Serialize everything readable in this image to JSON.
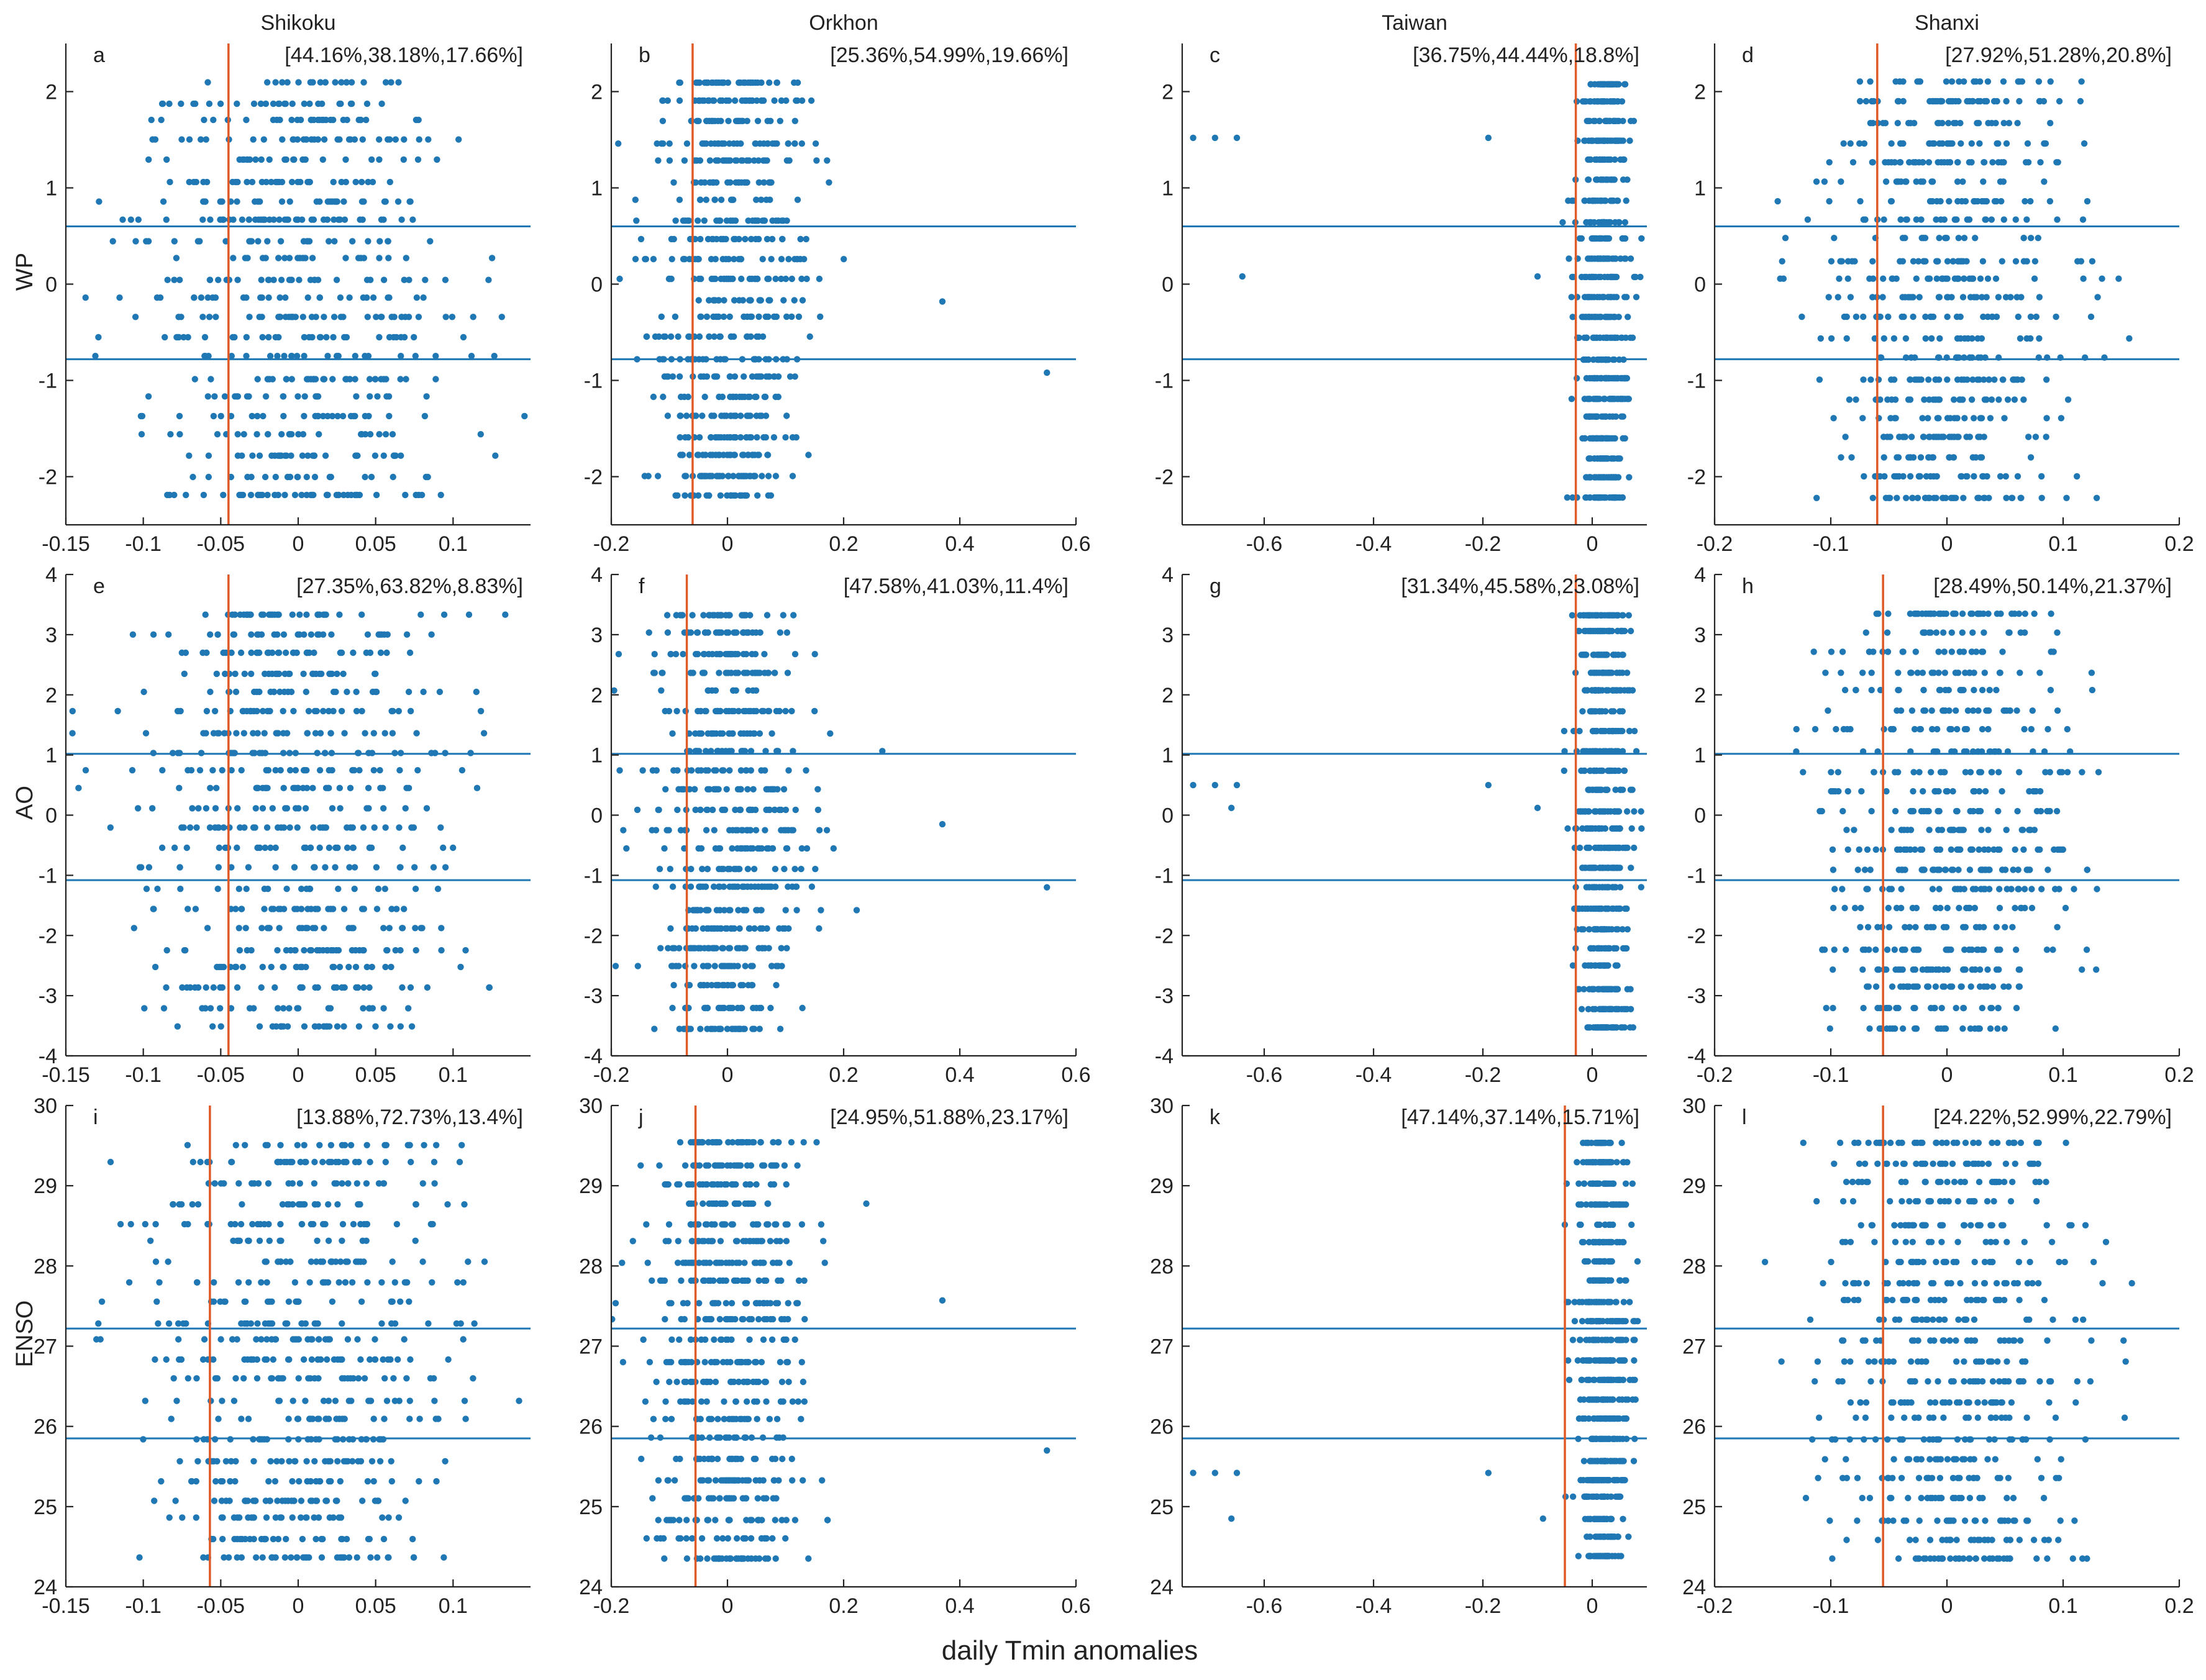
{
  "chart_data": {
    "type": "scatter",
    "xlabel": "daily Tmin anomalies",
    "colors": {
      "points": "#1f77b4",
      "threshold_lines": "#1f77b4",
      "vertical_line": "#e05a28"
    },
    "columns": [
      {
        "title": "Shikoku",
        "xlim": [
          -0.15,
          0.15
        ],
        "xticks": [
          "-0.15",
          "-0.1",
          "-0.05",
          "0",
          "0.05",
          "0.1"
        ]
      },
      {
        "title": "Orkhon",
        "xlim": [
          -0.2,
          0.6
        ],
        "xticks": [
          "-0.2",
          "0",
          "0.2",
          "0.4",
          "0.6"
        ]
      },
      {
        "title": "Taiwan",
        "xlim": [
          -0.75,
          0.1
        ],
        "xticks": [
          "-0.6",
          "-0.4",
          "-0.2",
          "0"
        ]
      },
      {
        "title": "Shanxi",
        "xlim": [
          -0.2,
          0.2
        ],
        "xticks": [
          "-0.2",
          "-0.1",
          "0",
          "0.1",
          "0.2"
        ]
      }
    ],
    "rows": [
      {
        "ylabel": "WP",
        "ylim": [
          -2.5,
          2.5
        ],
        "yticks": [
          "-2",
          "-1",
          "0",
          "1",
          "2"
        ],
        "hlines": [
          0.6,
          -0.78
        ]
      },
      {
        "ylabel": "AO",
        "ylim": [
          -4,
          4
        ],
        "yticks": [
          "-4",
          "-3",
          "-2",
          "-1",
          "0",
          "1",
          "2",
          "3",
          "4"
        ],
        "hlines": [
          1.02,
          -1.08
        ]
      },
      {
        "ylabel": "ENSO",
        "ylim": [
          24,
          30
        ],
        "yticks": [
          "24",
          "25",
          "26",
          "27",
          "28",
          "29",
          "30"
        ],
        "hlines": [
          27.22,
          25.85
        ]
      }
    ],
    "panels": [
      {
        "letter": "a",
        "row": 0,
        "col": 0,
        "label": "[44.16%,38.18%,17.66%]",
        "vline": -0.045
      },
      {
        "letter": "b",
        "row": 0,
        "col": 1,
        "label": "[25.36%,54.99%,19.66%]",
        "vline": -0.06
      },
      {
        "letter": "c",
        "row": 0,
        "col": 2,
        "label": "[36.75%,44.44%,18.8%]",
        "vline": -0.03
      },
      {
        "letter": "d",
        "row": 0,
        "col": 3,
        "label": "[27.92%,51.28%,20.8%]",
        "vline": -0.06
      },
      {
        "letter": "e",
        "row": 1,
        "col": 0,
        "label": "[27.35%,63.82%,8.83%]",
        "vline": -0.045
      },
      {
        "letter": "f",
        "row": 1,
        "col": 1,
        "label": "[47.58%,41.03%,11.4%]",
        "vline": -0.07
      },
      {
        "letter": "g",
        "row": 1,
        "col": 2,
        "label": "[31.34%,45.58%,23.08%]",
        "vline": -0.03
      },
      {
        "letter": "h",
        "row": 1,
        "col": 3,
        "label": "[28.49%,50.14%,21.37%]",
        "vline": -0.055
      },
      {
        "letter": "i",
        "row": 2,
        "col": 0,
        "label": "[13.88%,72.73%,13.4%]",
        "vline": -0.057
      },
      {
        "letter": "j",
        "row": 2,
        "col": 1,
        "label": "[24.95%,51.88%,23.17%]",
        "vline": -0.055
      },
      {
        "letter": "k",
        "row": 2,
        "col": 2,
        "label": "[47.14%,37.14%,15.71%]",
        "vline": -0.05
      },
      {
        "letter": "l",
        "row": 2,
        "col": 3,
        "label": "[24.22%,52.99%,22.79%]",
        "vline": -0.055
      }
    ],
    "point_clouds": {
      "description_of_distribution": "dense clusters of daily points arranged in horizontal bands (one band per index value)",
      "centers_by_column": [
        0.0,
        0.0,
        0.02,
        0.0
      ],
      "spread_by_column": [
        0.05,
        0.07,
        0.025,
        0.055
      ],
      "outliers": [
        {
          "panel": "b",
          "x": 0.37,
          "y": -0.18
        },
        {
          "panel": "b",
          "x": 0.55,
          "y": -0.92
        },
        {
          "panel": "c",
          "x": -0.73,
          "y": 1.52
        },
        {
          "panel": "c",
          "x": -0.69,
          "y": 1.52
        },
        {
          "panel": "c",
          "x": -0.65,
          "y": 1.52
        },
        {
          "panel": "c",
          "x": -0.64,
          "y": 0.08
        },
        {
          "panel": "c",
          "x": -0.19,
          "y": 1.52
        },
        {
          "panel": "c",
          "x": -0.1,
          "y": 0.08
        },
        {
          "panel": "f",
          "x": 0.37,
          "y": -0.15
        },
        {
          "panel": "f",
          "x": 0.55,
          "y": -1.2
        },
        {
          "panel": "g",
          "x": -0.73,
          "y": 0.5
        },
        {
          "panel": "g",
          "x": -0.69,
          "y": 0.5
        },
        {
          "panel": "g",
          "x": -0.65,
          "y": 0.5
        },
        {
          "panel": "g",
          "x": -0.66,
          "y": 0.12
        },
        {
          "panel": "g",
          "x": -0.19,
          "y": 0.5
        },
        {
          "panel": "g",
          "x": -0.1,
          "y": 0.12
        },
        {
          "panel": "j",
          "x": 0.37,
          "y": 27.57
        },
        {
          "panel": "j",
          "x": 0.55,
          "y": 25.7
        },
        {
          "panel": "k",
          "x": -0.73,
          "y": 25.42
        },
        {
          "panel": "k",
          "x": -0.69,
          "y": 25.42
        },
        {
          "panel": "k",
          "x": -0.65,
          "y": 25.42
        },
        {
          "panel": "k",
          "x": -0.66,
          "y": 24.85
        },
        {
          "panel": "k",
          "x": -0.19,
          "y": 25.42
        },
        {
          "panel": "k",
          "x": -0.09,
          "y": 24.85
        }
      ]
    }
  }
}
